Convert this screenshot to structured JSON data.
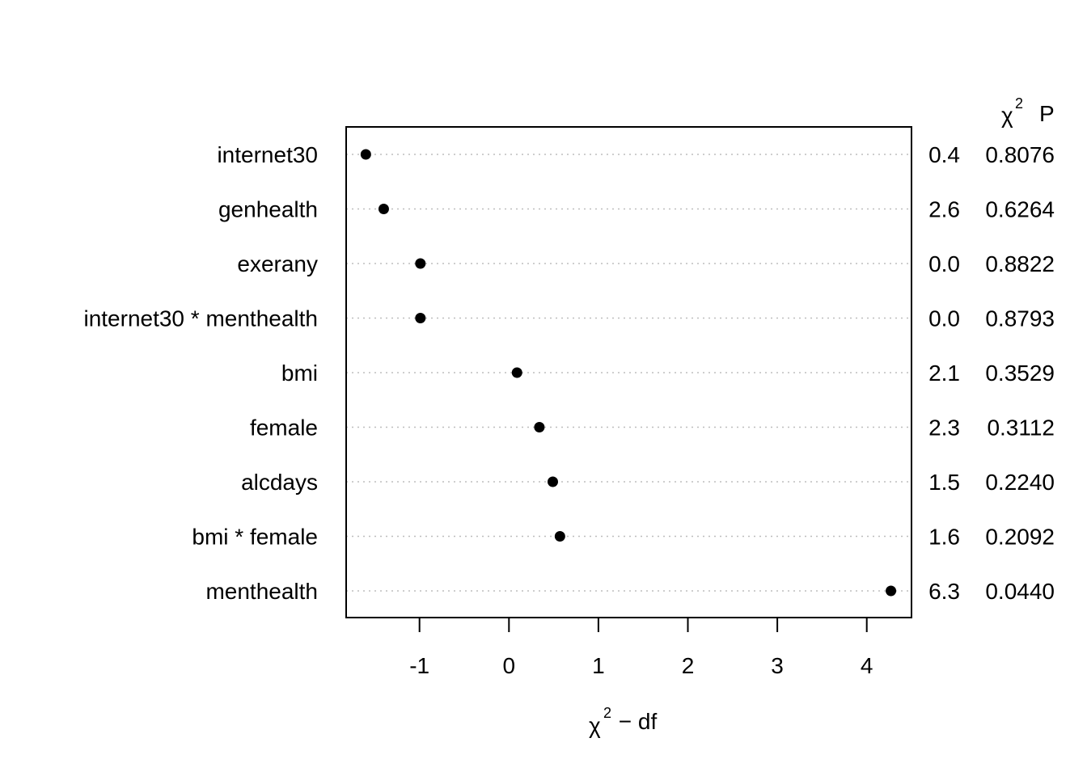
{
  "chart_data": {
    "type": "scatter",
    "title": "",
    "xlabel": {
      "symbol": "χ",
      "superscript": "2",
      "rest": " − df"
    },
    "xlim": [
      -1.82,
      4.5
    ],
    "xticks": [
      -1,
      0,
      1,
      2,
      3,
      4
    ],
    "grid": "dotted horizontal guide lines per row",
    "right_header": {
      "chi_symbol": "χ",
      "chi_superscript": "2",
      "p_label": "P"
    },
    "rows": [
      {
        "label": "internet30",
        "value": -1.6,
        "chi2": "0.4",
        "p": "0.8076"
      },
      {
        "label": "genhealth",
        "value": -1.4,
        "chi2": "2.6",
        "p": "0.6264"
      },
      {
        "label": "exerany",
        "value": -0.99,
        "chi2": "0.0",
        "p": "0.8822"
      },
      {
        "label": "internet30 * menthealth",
        "value": -0.99,
        "chi2": "0.0",
        "p": "0.8793"
      },
      {
        "label": "bmi",
        "value": 0.09,
        "chi2": "2.1",
        "p": "0.3529"
      },
      {
        "label": "female",
        "value": 0.34,
        "chi2": "2.3",
        "p": "0.3112"
      },
      {
        "label": "alcdays",
        "value": 0.49,
        "chi2": "1.5",
        "p": "0.2240"
      },
      {
        "label": "bmi * female",
        "value": 0.57,
        "chi2": "1.6",
        "p": "0.2092"
      },
      {
        "label": "menthealth",
        "value": 4.27,
        "chi2": "6.3",
        "p": "0.0440"
      }
    ]
  }
}
